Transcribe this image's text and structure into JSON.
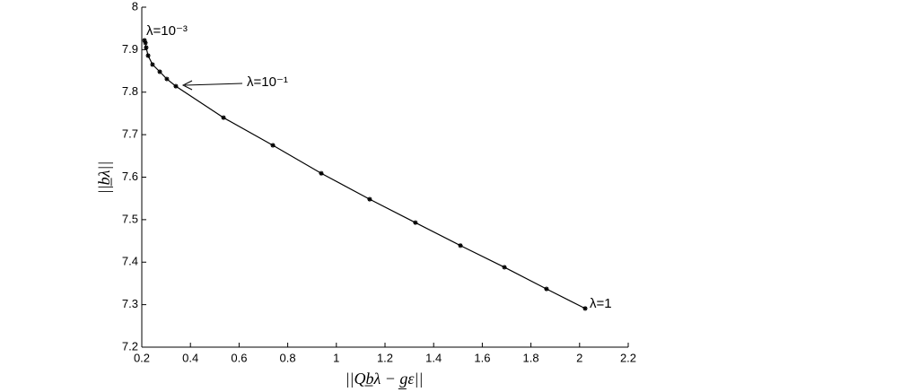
{
  "chart_data": {
    "type": "line",
    "xlabel": "||Qb̲λ − g̲ε||",
    "ylabel": "||b̲λ||",
    "x": [
      0.211,
      0.215,
      0.218,
      0.226,
      0.244,
      0.274,
      0.303,
      0.34,
      0.536,
      0.739,
      0.938,
      1.137,
      1.325,
      1.51,
      1.691,
      1.864,
      2.023
    ],
    "series": [
      {
        "color": "#000000",
        "values": [
          7.922,
          7.916,
          7.905,
          7.886,
          7.865,
          7.848,
          7.831,
          7.814,
          7.74,
          7.675,
          7.609,
          7.548,
          7.493,
          7.439,
          7.388,
          7.337,
          7.291
        ]
      }
    ],
    "xlim": [
      0.2,
      2.2
    ],
    "xticks": [
      0.2,
      0.4,
      0.6,
      0.8,
      1,
      1.2,
      1.4,
      1.6,
      1.8,
      2,
      2.2
    ],
    "ylim": [
      7.2,
      8
    ],
    "yticks": [
      7.2,
      7.3,
      7.4,
      7.5,
      7.6,
      7.7,
      7.8,
      7.9,
      8
    ],
    "annotations": [
      "λ=10⁻³",
      "λ=10⁻¹",
      "λ=1"
    ]
  }
}
